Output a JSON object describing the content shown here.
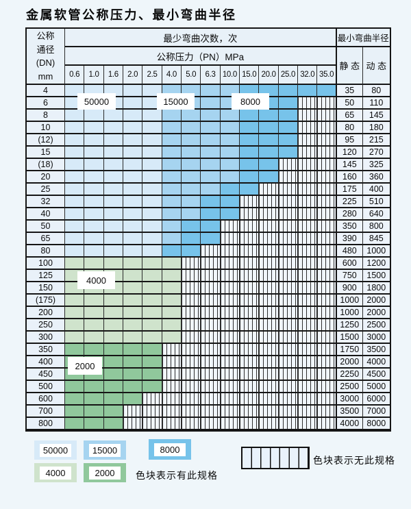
{
  "title": "金属软管公称压力、最小弯曲半径",
  "table": {
    "header": {
      "dn_lines": [
        "公称",
        "通径",
        "(DN)",
        "mm"
      ],
      "bend_cycles": "最少弯曲次数，次",
      "pressure": "公称压力（PN）MPa",
      "radius": "最小弯曲半径",
      "static_label": "静 态",
      "dynamic_label": "动 态",
      "pressure_cols": [
        "0.6",
        "1.0",
        "1.6",
        "2.0",
        "2.5",
        "4.0",
        "5.0",
        "6.3",
        "10.0",
        "15.0",
        "20.0",
        "25.0",
        "32.0",
        "35.0"
      ]
    },
    "rows": [
      {
        "dn": "4",
        "filled": 14,
        "zone": "blue",
        "static": "35",
        "dynamic": "80"
      },
      {
        "dn": "6",
        "filled": 12,
        "zone": "blue",
        "static": "50",
        "dynamic": "110"
      },
      {
        "dn": "8",
        "filled": 12,
        "zone": "blue",
        "static": "65",
        "dynamic": "145"
      },
      {
        "dn": "10",
        "filled": 12,
        "zone": "blue",
        "static": "80",
        "dynamic": "180"
      },
      {
        "dn": "(12)",
        "filled": 12,
        "zone": "blue",
        "static": "95",
        "dynamic": "215"
      },
      {
        "dn": "15",
        "filled": 12,
        "zone": "blue",
        "static": "120",
        "dynamic": "270"
      },
      {
        "dn": "(18)",
        "filled": 11,
        "zone": "blue",
        "static": "145",
        "dynamic": "325"
      },
      {
        "dn": "20",
        "filled": 11,
        "zone": "blue",
        "static": "160",
        "dynamic": "360"
      },
      {
        "dn": "25",
        "filled": 10,
        "zone": "blue",
        "static": "175",
        "dynamic": "400"
      },
      {
        "dn": "32",
        "filled": 9,
        "zone": "blue",
        "static": "225",
        "dynamic": "510"
      },
      {
        "dn": "40",
        "filled": 9,
        "zone": "blue",
        "static": "280",
        "dynamic": "640"
      },
      {
        "dn": "50",
        "filled": 8,
        "zone": "blue",
        "static": "350",
        "dynamic": "800"
      },
      {
        "dn": "65",
        "filled": 8,
        "zone": "blue",
        "static": "390",
        "dynamic": "845"
      },
      {
        "dn": "80",
        "filled": 7,
        "zone": "blue",
        "static": "480",
        "dynamic": "1000"
      },
      {
        "dn": "100",
        "filled": 6,
        "zone": "green-light",
        "static": "600",
        "dynamic": "1200"
      },
      {
        "dn": "125",
        "filled": 6,
        "zone": "green-light",
        "static": "750",
        "dynamic": "1500"
      },
      {
        "dn": "150",
        "filled": 6,
        "zone": "green-light",
        "static": "900",
        "dynamic": "1800"
      },
      {
        "dn": "(175)",
        "filled": 6,
        "zone": "green-light",
        "static": "1000",
        "dynamic": "2000"
      },
      {
        "dn": "200",
        "filled": 6,
        "zone": "green-light",
        "static": "1000",
        "dynamic": "2000"
      },
      {
        "dn": "250",
        "filled": 6,
        "zone": "green-light",
        "static": "1250",
        "dynamic": "2500"
      },
      {
        "dn": "300",
        "filled": 6,
        "zone": "green-light",
        "static": "1500",
        "dynamic": "3000"
      },
      {
        "dn": "350",
        "filled": 5,
        "zone": "green-dark",
        "static": "1750",
        "dynamic": "3500"
      },
      {
        "dn": "400",
        "filled": 5,
        "zone": "green-dark",
        "static": "2000",
        "dynamic": "4000"
      },
      {
        "dn": "450",
        "filled": 5,
        "zone": "green-dark",
        "static": "2250",
        "dynamic": "4500"
      },
      {
        "dn": "500",
        "filled": 5,
        "zone": "green-dark",
        "static": "2500",
        "dynamic": "5000"
      },
      {
        "dn": "600",
        "filled": 4,
        "zone": "green-dark",
        "static": "3000",
        "dynamic": "6000"
      },
      {
        "dn": "700",
        "filled": 3,
        "zone": "green-dark",
        "static": "3500",
        "dynamic": "7000"
      },
      {
        "dn": "800",
        "filled": 3,
        "zone": "green-dark",
        "static": "4000",
        "dynamic": "8000"
      }
    ]
  },
  "zone_labels": {
    "blue_50000": "50000",
    "blue_15000": "15000",
    "blue_8000": "8000",
    "green_4000": "4000",
    "green_2000": "2000"
  },
  "legend": {
    "items": [
      {
        "value": "50000",
        "shade": "blue-light",
        "color": "#d7eaf8"
      },
      {
        "value": "15000",
        "shade": "blue-medium",
        "color": "#a6d4f0"
      },
      {
        "value": "8000",
        "shade": "blue-dark",
        "color": "#77c3ea"
      },
      {
        "value": "4000",
        "shade": "green-light",
        "color": "#cfe3cc"
      },
      {
        "value": "2000",
        "shade": "green-dark",
        "color": "#90c89c"
      }
    ],
    "has_spec_text": "色块表示有此规格",
    "no_spec_text": "色块表示无此规格"
  },
  "colors": {
    "blue_light": "#d7eaf8",
    "blue_medium": "#a6d4f0",
    "blue_dark": "#77c3ea",
    "green_light": "#cfe3cc",
    "green_dark": "#90c89c",
    "grid_line": "#1c1c1c",
    "cell_plain": "#edf3fa",
    "page_bg": "#eff6fa"
  }
}
